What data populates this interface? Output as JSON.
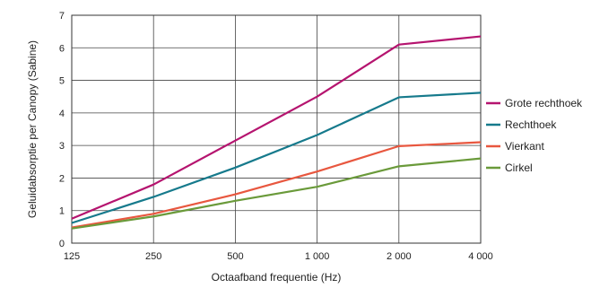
{
  "chart_data": {
    "type": "line",
    "xlabel": "Octaafband frequentie (Hz)",
    "ylabel": "Geluidabsorptie per Canopy (Sabine)",
    "categories": [
      "125",
      "250",
      "500",
      "1 000",
      "2 000",
      "4 000"
    ],
    "ylim": [
      0,
      7
    ],
    "yticks": [
      "0",
      "1",
      "2",
      "3",
      "4",
      "5",
      "6",
      "7"
    ],
    "grid": true,
    "legend_position": "right",
    "series": [
      {
        "name": "Grote rechthoek",
        "color": "#b5146f",
        "values": [
          0.75,
          1.8,
          3.15,
          4.5,
          6.1,
          6.35
        ]
      },
      {
        "name": "Rechthoek",
        "color": "#167a8c",
        "values": [
          0.62,
          1.42,
          2.32,
          3.32,
          4.48,
          4.62
        ]
      },
      {
        "name": "Vierkant",
        "color": "#e8573f",
        "values": [
          0.48,
          0.9,
          1.5,
          2.2,
          2.98,
          3.1
        ]
      },
      {
        "name": "Cirkel",
        "color": "#6a9a3a",
        "values": [
          0.45,
          0.82,
          1.3,
          1.73,
          2.36,
          2.6
        ]
      }
    ]
  }
}
